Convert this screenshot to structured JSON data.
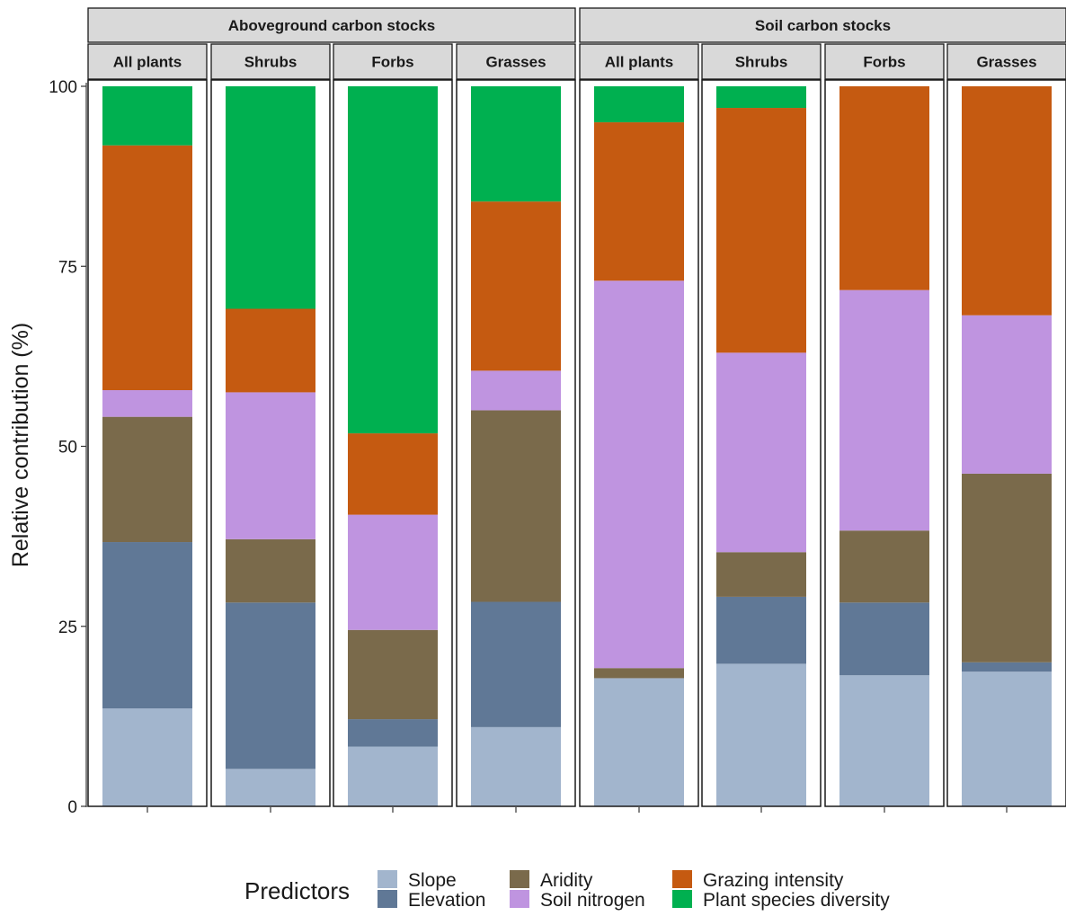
{
  "chart_data": {
    "type": "bar",
    "stacked": true,
    "ylabel": "Relative contribution (%)",
    "ylim": [
      0,
      100
    ],
    "y_ticks": [
      "0",
      "25",
      "50",
      "75",
      "100"
    ],
    "grid": false,
    "legend_placement": "bottom",
    "legend_title": "Predictors",
    "groups": [
      {
        "name": "Aboveground carbon stocks",
        "panels": [
          "All plants",
          "Shrubs",
          "Forbs",
          "Grasses"
        ]
      },
      {
        "name": "Soil carbon stocks",
        "panels": [
          "All plants",
          "Shrubs",
          "Forbs",
          "Grasses"
        ]
      }
    ],
    "series": [
      {
        "name": "Slope",
        "color": "#a2b5cd",
        "values": [
          13.6,
          5.2,
          8.3,
          11.0,
          17.8,
          19.8,
          18.2,
          18.7
        ]
      },
      {
        "name": "Elevation",
        "color": "#607896",
        "values": [
          23.1,
          23.1,
          3.8,
          17.4,
          0.0,
          9.3,
          10.1,
          1.3
        ]
      },
      {
        "name": "Aridity",
        "color": "#7a6a4b",
        "values": [
          17.4,
          8.8,
          12.4,
          26.6,
          1.4,
          6.2,
          10.0,
          26.2
        ]
      },
      {
        "name": "Soil nitrogen",
        "color": "#bf94e0",
        "values": [
          3.7,
          20.4,
          16.0,
          5.5,
          53.8,
          27.7,
          33.4,
          22.0
        ]
      },
      {
        "name": "Grazing intensity",
        "color": "#c55a11",
        "values": [
          34.0,
          11.6,
          11.3,
          23.5,
          22.0,
          34.0,
          28.3,
          31.8
        ]
      },
      {
        "name": "Plant species diversity",
        "color": "#00b050",
        "values": [
          8.2,
          30.9,
          48.2,
          16.0,
          5.0,
          3.0,
          0.0,
          0.0
        ]
      }
    ]
  }
}
